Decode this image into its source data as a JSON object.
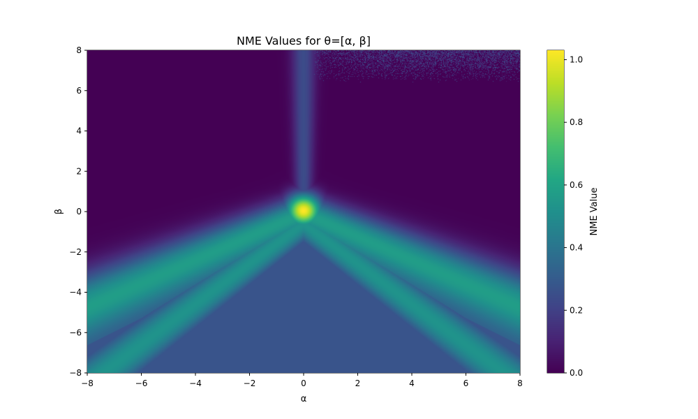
{
  "chart_data": {
    "type": "heatmap",
    "title": "NME Values for θ=[α, β]",
    "xlabel": "α",
    "ylabel": "β",
    "xlim": [
      -8,
      8
    ],
    "ylim": [
      -8,
      8
    ],
    "xticks": [
      -8,
      -6,
      -4,
      -2,
      0,
      2,
      4,
      6,
      8
    ],
    "yticks": [
      -8,
      -6,
      -4,
      -2,
      0,
      2,
      4,
      6,
      8
    ],
    "xtick_labels": [
      "−8",
      "−6",
      "−4",
      "−2",
      "0",
      "2",
      "4",
      "6",
      "8"
    ],
    "ytick_labels": [
      "−8",
      "−6",
      "−4",
      "−2",
      "0",
      "2",
      "4",
      "6",
      "8"
    ],
    "colormap": "viridis",
    "colorbar": {
      "label": "NME Value",
      "range": [
        0.0,
        1.03
      ],
      "ticks": [
        0.0,
        0.2,
        0.4,
        0.6,
        0.8,
        1.0
      ],
      "tick_labels": [
        "0.0",
        "0.2",
        "0.4",
        "0.6",
        "0.8",
        "1.0"
      ]
    },
    "features": {
      "peak": {
        "alpha": 0,
        "beta": 0,
        "value": 1.03
      },
      "vertical_ridge": {
        "alpha": 0,
        "beta_range": [
          1,
          8
        ],
        "value": 0.3
      },
      "outer_ridge_slopes": [
        0.57,
        -0.57
      ],
      "inner_ridge_slopes": [
        1.0,
        -1.0
      ],
      "ridge_value": 0.55,
      "lower_region_value": 0.27,
      "upper_region_value": 0.0
    }
  }
}
